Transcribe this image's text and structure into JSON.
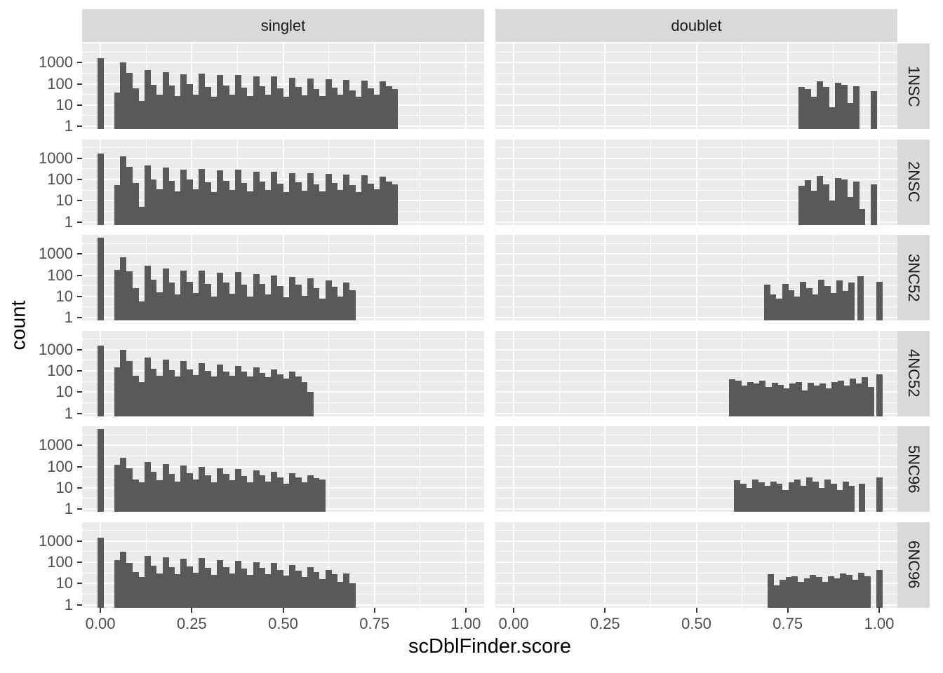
{
  "colors": {
    "bar_fill": "#595959",
    "panel_background": "#EBEBEB",
    "strip_background": "#D9D9D9",
    "gridline": "#ffffff",
    "axis_text": "#4D4D4D",
    "strip_text": "#1A1A1A",
    "tick_mark": "#333333",
    "title_text": "#000000"
  },
  "chart_data": {
    "type": "bar",
    "subtype": "faceted-histogram",
    "title": "",
    "x_title": "scDblFinder.score",
    "y_title": "count",
    "y_scale": "log10",
    "x_tick_values": [
      0,
      0.25,
      0.5,
      0.75,
      1.0
    ],
    "x_tick_labels": [
      "0.00",
      "0.25",
      "0.50",
      "0.75",
      "1.00"
    ],
    "y_tick_values": [
      1,
      10,
      100,
      1000
    ],
    "y_tick_labels": [
      "1",
      "10",
      "100",
      "1000"
    ],
    "x_minor_breaks": [
      0.125,
      0.375,
      0.625,
      0.875
    ],
    "y_minor_breaks_log10": [
      0.5,
      1.5,
      2.5,
      3.5
    ],
    "x_range_shown": [
      -0.05,
      1.05
    ],
    "y_range_shown_log10": [
      -0.13,
      3.9
    ],
    "grid": true,
    "legend_position": "none",
    "binwidth": 0.0165,
    "facet_cols": [
      "singlet",
      "doublet"
    ],
    "facet_rows": [
      "1NSC",
      "2NSC",
      "3NC52",
      "4NC52",
      "5NC96",
      "6NC96"
    ],
    "facets": [
      {
        "row": "1NSC",
        "col": "singlet",
        "zero_spike": {
          "x0": -0.0085,
          "count": 1600
        },
        "bins_start": 0.038,
        "counts": [
          40,
          1050,
          330,
          60,
          16,
          430,
          90,
          30,
          340,
          80,
          26,
          280,
          95,
          32,
          300,
          70,
          24,
          250,
          80,
          30,
          260,
          65,
          26,
          215,
          75,
          30,
          225,
          60,
          24,
          190,
          70,
          28,
          180,
          55,
          26,
          165,
          65,
          30,
          150,
          50,
          24,
          145,
          60,
          32,
          130,
          75,
          55
        ],
        "isolated": []
      },
      {
        "row": "1NSC",
        "col": "doublet",
        "zero_spike": null,
        "bins_start": 0.78,
        "counts": [
          70,
          55,
          25,
          130,
          70,
          8,
          110,
          90,
          12,
          75
        ],
        "isolated": [
          {
            "x0": 0.978,
            "count": 45
          }
        ]
      },
      {
        "row": "2NSC",
        "col": "singlet",
        "zero_spike": {
          "x0": -0.0085,
          "count": 1700
        },
        "bins_start": 0.038,
        "counts": [
          55,
          1200,
          380,
          70,
          5,
          450,
          100,
          35,
          360,
          85,
          28,
          300,
          100,
          35,
          320,
          75,
          26,
          270,
          85,
          32,
          280,
          70,
          28,
          230,
          80,
          32,
          240,
          65,
          26,
          205,
          75,
          30,
          195,
          60,
          28,
          180,
          70,
          32,
          165,
          55,
          26,
          155,
          65,
          35,
          140,
          80,
          60
        ],
        "isolated": []
      },
      {
        "row": "2NSC",
        "col": "doublet",
        "zero_spike": null,
        "bins_start": 0.78,
        "counts": [
          50,
          90,
          30,
          150,
          60,
          10,
          120,
          100,
          15,
          80,
          4
        ],
        "isolated": [
          {
            "x0": 0.978,
            "count": 60
          }
        ]
      },
      {
        "row": "3NC52",
        "col": "singlet",
        "zero_spike": {
          "x0": -0.0085,
          "count": 6000
        },
        "bins_start": 0.038,
        "counts": [
          180,
          700,
          150,
          25,
          6,
          280,
          60,
          15,
          200,
          45,
          12,
          160,
          50,
          14,
          170,
          40,
          10,
          130,
          45,
          13,
          140,
          35,
          10,
          110,
          40,
          12,
          100,
          30,
          9,
          85,
          35,
          11,
          70,
          25,
          8,
          55,
          28,
          10,
          45,
          20
        ],
        "isolated": []
      },
      {
        "row": "3NC52",
        "col": "doublet",
        "zero_spike": null,
        "bins_start": 0.685,
        "counts": [
          35,
          12,
          8,
          40,
          20,
          10,
          50,
          25,
          12,
          60,
          30,
          14,
          55,
          18,
          45
        ],
        "isolated": [
          {
            "x0": 0.941,
            "count": 90
          },
          {
            "x0": 0.993,
            "count": 50
          }
        ]
      },
      {
        "row": "4NC52",
        "col": "singlet",
        "zero_spike": {
          "x0": -0.0085,
          "count": 1600
        },
        "bins_start": 0.038,
        "counts": [
          150,
          1000,
          280,
          60,
          30,
          420,
          130,
          60,
          330,
          110,
          55,
          280,
          120,
          65,
          240,
          100,
          55,
          200,
          95,
          60,
          170,
          90,
          55,
          150,
          80,
          50,
          120,
          70,
          45,
          90,
          55,
          30,
          10
        ],
        "isolated": []
      },
      {
        "row": "4NC52",
        "col": "doublet",
        "zero_spike": null,
        "bins_start": 0.59,
        "counts": [
          40,
          35,
          20,
          30,
          25,
          35,
          18,
          28,
          22,
          15,
          25,
          30,
          12,
          28,
          20,
          25,
          15,
          30,
          35,
          20,
          45,
          25,
          50,
          18
        ],
        "isolated": [
          {
            "x0": 0.993,
            "count": 70
          }
        ]
      },
      {
        "row": "5NC96",
        "col": "singlet",
        "zero_spike": {
          "x0": -0.0085,
          "count": 6000
        },
        "bins_start": 0.038,
        "counts": [
          120,
          260,
          80,
          25,
          18,
          160,
          55,
          22,
          130,
          45,
          20,
          110,
          50,
          24,
          100,
          40,
          18,
          85,
          45,
          22,
          75,
          35,
          18,
          65,
          40,
          20,
          55,
          30,
          16,
          48,
          32,
          18,
          40,
          28,
          25
        ],
        "isolated": []
      },
      {
        "row": "5NC96",
        "col": "doublet",
        "zero_spike": null,
        "bins_start": 0.603,
        "counts": [
          22,
          15,
          10,
          25,
          18,
          12,
          20,
          15,
          8,
          18,
          25,
          12,
          30,
          20,
          10,
          25,
          15,
          8,
          20,
          12
        ],
        "isolated": [
          {
            "x0": 0.945,
            "count": 15
          },
          {
            "x0": 0.993,
            "count": 30
          }
        ]
      },
      {
        "row": "6NC96",
        "col": "singlet",
        "zero_spike": {
          "x0": -0.0085,
          "count": 1400
        },
        "bins_start": 0.038,
        "counts": [
          130,
          320,
          90,
          35,
          20,
          200,
          70,
          30,
          170,
          60,
          28,
          150,
          65,
          32,
          160,
          55,
          26,
          130,
          60,
          30,
          120,
          50,
          26,
          100,
          55,
          28,
          90,
          45,
          24,
          75,
          40,
          20,
          60,
          35,
          16,
          45,
          28,
          12,
          30,
          10
        ],
        "isolated": []
      },
      {
        "row": "6NC96",
        "col": "doublet",
        "zero_spike": null,
        "bins_start": 0.695,
        "counts": [
          28,
          8,
          15,
          20,
          22,
          12,
          18,
          25,
          20,
          12,
          22,
          18,
          30,
          25,
          15,
          32,
          22
        ],
        "isolated": [
          {
            "x0": 0.993,
            "count": 45
          }
        ]
      }
    ]
  }
}
